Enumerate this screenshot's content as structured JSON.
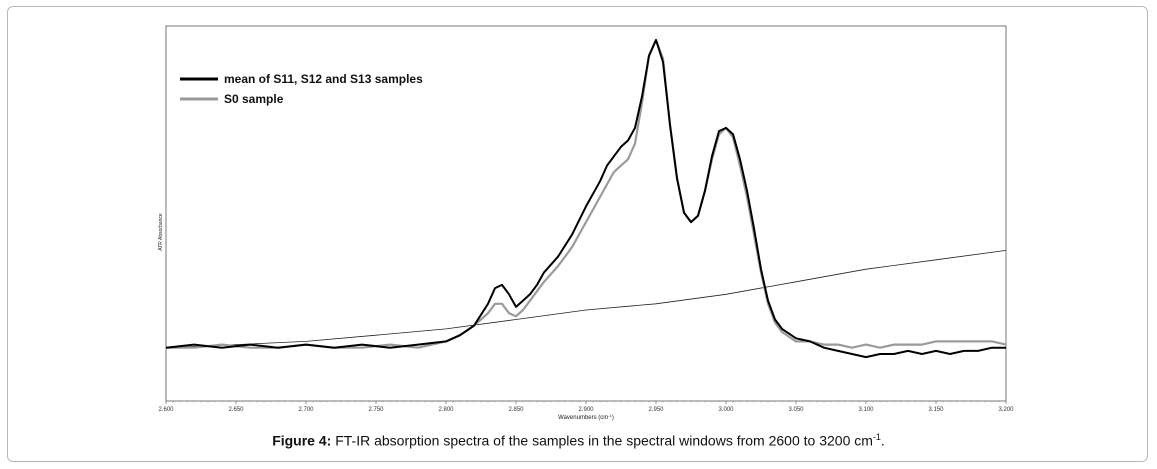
{
  "chart_data": {
    "type": "line",
    "xlabel": "Wavenumbers (cm",
    "xlabel_sup": "-1",
    "xlabel_end": ")",
    "ylabel": "ATR Absorbance",
    "xlim": [
      2600,
      3200
    ],
    "ylim": [
      0,
      1
    ],
    "x_ticks": [
      "2.600",
      "2.650",
      "2.700",
      "2.750",
      "2.800",
      "2.850",
      "2.900",
      "2.950",
      "3.000",
      "3.050",
      "3.100",
      "3.150",
      "3.200"
    ],
    "x_tick_values": [
      2600,
      2650,
      2700,
      2750,
      2800,
      2850,
      2900,
      2950,
      3000,
      3050,
      3100,
      3150,
      3200
    ],
    "legend_position": "top-left",
    "series": [
      {
        "name": "mean of S11, S12 and S13 samples",
        "color": "#000000",
        "x": [
          2600,
          2620,
          2640,
          2660,
          2680,
          2700,
          2720,
          2740,
          2760,
          2780,
          2800,
          2810,
          2820,
          2830,
          2835,
          2840,
          2845,
          2850,
          2855,
          2860,
          2865,
          2870,
          2880,
          2890,
          2900,
          2910,
          2915,
          2920,
          2925,
          2930,
          2935,
          2940,
          2945,
          2950,
          2955,
          2960,
          2965,
          2970,
          2975,
          2980,
          2985,
          2990,
          2995,
          3000,
          3005,
          3010,
          3015,
          3020,
          3025,
          3030,
          3035,
          3040,
          3050,
          3060,
          3070,
          3080,
          3090,
          3100,
          3110,
          3120,
          3130,
          3140,
          3150,
          3160,
          3170,
          3180,
          3190,
          3200
        ],
        "y": [
          0.02,
          0.03,
          0.02,
          0.03,
          0.02,
          0.03,
          0.02,
          0.03,
          0.02,
          0.03,
          0.04,
          0.06,
          0.09,
          0.16,
          0.21,
          0.22,
          0.19,
          0.15,
          0.17,
          0.19,
          0.22,
          0.26,
          0.31,
          0.38,
          0.47,
          0.55,
          0.6,
          0.63,
          0.66,
          0.68,
          0.72,
          0.82,
          0.95,
          1.0,
          0.93,
          0.73,
          0.56,
          0.45,
          0.42,
          0.44,
          0.52,
          0.63,
          0.71,
          0.72,
          0.7,
          0.62,
          0.52,
          0.4,
          0.27,
          0.17,
          0.11,
          0.08,
          0.05,
          0.04,
          0.02,
          0.01,
          0.0,
          -0.01,
          0.0,
          0.0,
          0.01,
          0.0,
          0.01,
          0.0,
          0.01,
          0.01,
          0.02,
          0.02
        ]
      },
      {
        "name": "S0 sample",
        "color": "#9a9a9a",
        "x": [
          2600,
          2620,
          2640,
          2660,
          2680,
          2700,
          2720,
          2740,
          2760,
          2780,
          2800,
          2810,
          2820,
          2830,
          2835,
          2840,
          2845,
          2850,
          2855,
          2860,
          2865,
          2870,
          2880,
          2890,
          2900,
          2910,
          2915,
          2920,
          2925,
          2930,
          2935,
          2940,
          2945,
          2950,
          2955,
          2960,
          2965,
          2970,
          2975,
          2980,
          2985,
          2990,
          2995,
          3000,
          3005,
          3010,
          3015,
          3020,
          3025,
          3030,
          3035,
          3040,
          3050,
          3060,
          3070,
          3080,
          3090,
          3100,
          3110,
          3120,
          3130,
          3140,
          3150,
          3160,
          3170,
          3180,
          3190,
          3200
        ],
        "y": [
          0.02,
          0.02,
          0.03,
          0.02,
          0.02,
          0.03,
          0.02,
          0.02,
          0.03,
          0.02,
          0.04,
          0.06,
          0.09,
          0.13,
          0.16,
          0.16,
          0.13,
          0.12,
          0.14,
          0.17,
          0.2,
          0.23,
          0.28,
          0.34,
          0.42,
          0.5,
          0.54,
          0.58,
          0.6,
          0.62,
          0.67,
          0.8,
          0.95,
          1.0,
          0.94,
          0.73,
          0.56,
          0.45,
          0.42,
          0.44,
          0.52,
          0.62,
          0.7,
          0.72,
          0.69,
          0.6,
          0.5,
          0.38,
          0.26,
          0.16,
          0.1,
          0.07,
          0.04,
          0.04,
          0.03,
          0.03,
          0.02,
          0.03,
          0.02,
          0.03,
          0.03,
          0.03,
          0.04,
          0.04,
          0.04,
          0.04,
          0.04,
          0.03
        ]
      },
      {
        "name": "",
        "color": "#222222",
        "x": [
          2600,
          2650,
          2700,
          2750,
          2800,
          2850,
          2900,
          2950,
          3000,
          3050,
          3100,
          3150,
          3200
        ],
        "y": [
          0.02,
          0.03,
          0.04,
          0.06,
          0.08,
          0.11,
          0.14,
          0.16,
          0.19,
          0.23,
          0.27,
          0.3,
          0.33
        ]
      }
    ]
  },
  "caption": {
    "label": "Figure 4:",
    "text": " FT-IR absorption spectra of the samples in the spectral windows from 2600 to 3200 cm",
    "sup": "-1",
    "end": "."
  }
}
